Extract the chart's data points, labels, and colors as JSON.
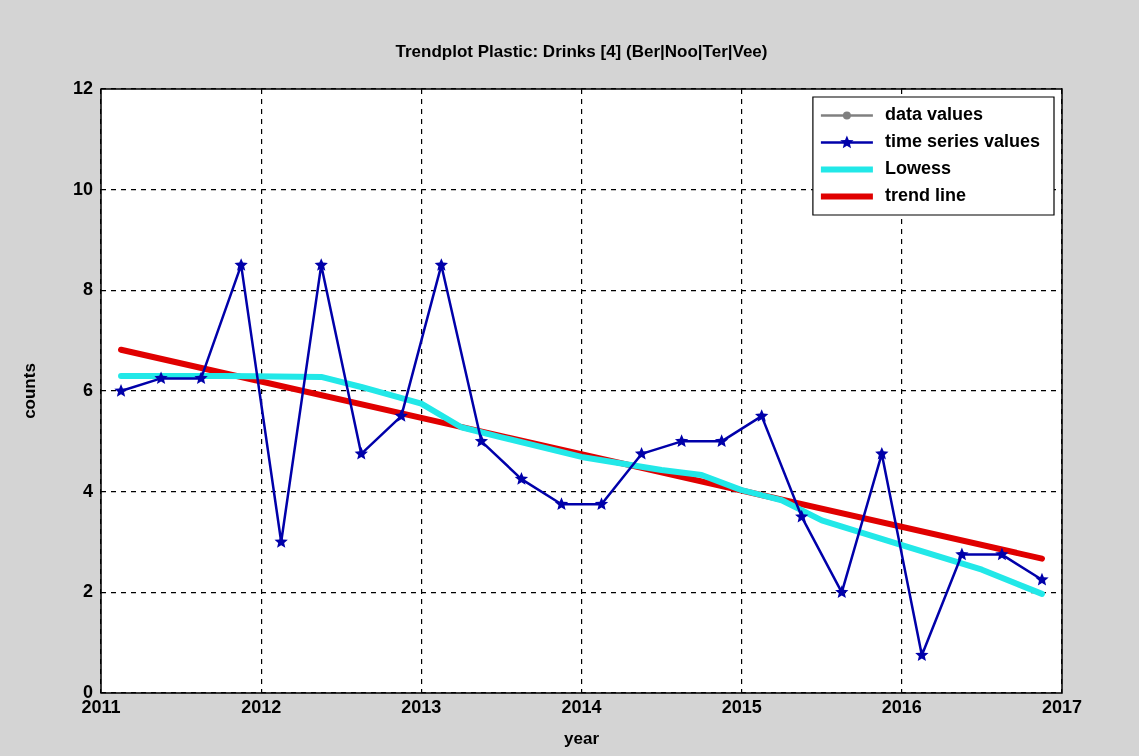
{
  "chart_data": {
    "type": "line",
    "title": "Trendplot Plastic: Drinks [4] (Ber|Noo|Ter|Vee)",
    "xlabel": "year",
    "ylabel": "counts",
    "xlim": [
      2011,
      2017
    ],
    "xticks": [
      2011,
      2012,
      2013,
      2014,
      2015,
      2016,
      2017
    ],
    "ylim": [
      0,
      12
    ],
    "yticks": [
      0,
      2,
      4,
      6,
      8,
      10,
      12
    ],
    "grid": true,
    "legend": "top right",
    "line_style": "solid",
    "x": [
      2011.125,
      2011.375,
      2011.625,
      2011.875,
      2012.125,
      2012.375,
      2012.625,
      2012.875,
      2013.125,
      2013.375,
      2013.625,
      2013.875,
      2014.125,
      2014.375,
      2014.625,
      2014.875,
      2015.125,
      2015.375,
      2015.625,
      2015.875,
      2016.125,
      2016.375,
      2016.625,
      2016.875
    ],
    "series": [
      {
        "name": "data values",
        "color": "#808080",
        "marker": "circle",
        "values": [
          null,
          null,
          null,
          null,
          null,
          null,
          null,
          null,
          null,
          null,
          null,
          null,
          null,
          null,
          null,
          null,
          null,
          null,
          null,
          null,
          null,
          null,
          null,
          null
        ]
      },
      {
        "name": "time series values",
        "color": "#0000aa",
        "marker": "star",
        "values": [
          6,
          6.25,
          6.25,
          8.5,
          3,
          8.5,
          4.75,
          5.5,
          8.5,
          5,
          4.25,
          3.75,
          3.75,
          4.75,
          5,
          5,
          5.5,
          3.5,
          2,
          4.75,
          0.75,
          2.75,
          2.75,
          2.25
        ]
      },
      {
        "name": "Lowess",
        "color": "#22e8e8",
        "marker": "none",
        "x": [
          2011.125,
          2011.75,
          2012.375,
          2012.625,
          2013,
          2013.25,
          2013.5,
          2014,
          2014.5,
          2014.75,
          2015,
          2015.25,
          2015.5,
          2016,
          2016.5,
          2016.875
        ],
        "values": [
          6.3,
          6.3,
          6.28,
          6.08,
          5.75,
          5.28,
          5.08,
          4.69,
          4.43,
          4.33,
          4.03,
          3.83,
          3.43,
          2.94,
          2.45,
          1.97
        ]
      },
      {
        "name": "trend line",
        "color": "#e00000",
        "marker": "none",
        "x": [
          2011.125,
          2016.875
        ],
        "values": [
          6.82,
          2.67
        ]
      }
    ]
  }
}
